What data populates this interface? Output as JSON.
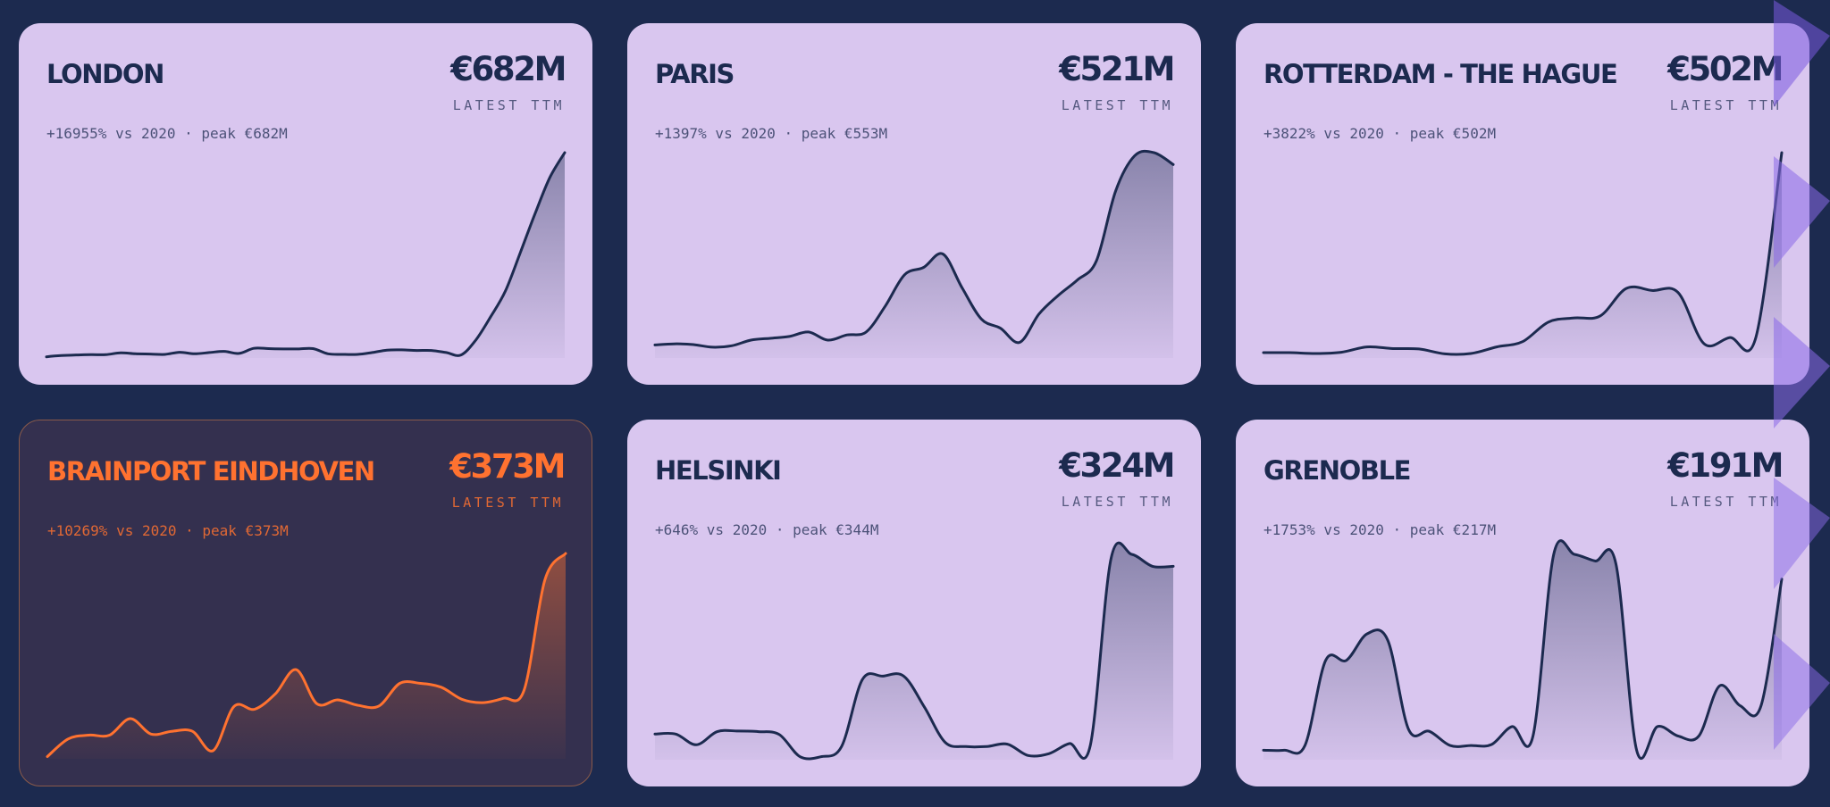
{
  "chart_data": [
    {
      "type": "area",
      "title": "LONDON",
      "headline": "€682M",
      "headline_label": "LATEST TTM",
      "subtitle": "+16955% vs 2020 · peak €682M",
      "highlight": false,
      "values": [
        4,
        8,
        10,
        11,
        11,
        17,
        14,
        13,
        12,
        19,
        14,
        18,
        22,
        15,
        32,
        31,
        30,
        30,
        31,
        14,
        12,
        12,
        18,
        26,
        27,
        25,
        25,
        18,
        10,
        60,
        137,
        223,
        350,
        480,
        600,
        682
      ],
      "ylim": [
        0,
        682
      ]
    },
    {
      "type": "area",
      "title": "PARIS",
      "headline": "€521M",
      "headline_label": "LATEST TTM",
      "subtitle": "+1397% vs 2020 · peak €553M",
      "highlight": false,
      "values": [
        35,
        38,
        36,
        29,
        33,
        48,
        53,
        58,
        70,
        48,
        62,
        70,
        140,
        224,
        244,
        280,
        189,
        105,
        80,
        42,
        118,
        168,
        210,
        262,
        450,
        545,
        553,
        521
      ],
      "ylim": [
        0,
        553
      ]
    },
    {
      "type": "area",
      "title": "ROTTERDAM - THE HAGUE",
      "headline": "€502M",
      "headline_label": "LATEST TTM",
      "subtitle": "+3822% vs 2020 · peak €502M",
      "highlight": false,
      "values": [
        13,
        13,
        11,
        14,
        27,
        23,
        22,
        10,
        11,
        27,
        40,
        88,
        98,
        103,
        170,
        165,
        160,
        35,
        50,
        50,
        502
      ],
      "ylim": [
        0,
        502
      ]
    },
    {
      "type": "area",
      "title": "BRAINPORT EINDHOVEN",
      "headline": "€373M",
      "headline_label": "LATEST TTM",
      "subtitle": "+10269% vs 2020 · peak €373M",
      "highlight": true,
      "values": [
        4,
        36,
        43,
        43,
        73,
        45,
        50,
        50,
        15,
        95,
        90,
        118,
        162,
        100,
        107,
        97,
        96,
        137,
        137,
        130,
        108,
        102,
        110,
        125,
        325,
        373
      ],
      "ylim": [
        0,
        373
      ]
    },
    {
      "type": "area",
      "title": "HELSINKI",
      "headline": "€324M",
      "headline_label": "LATEST TTM",
      "subtitle": "+646% vs 2020 · peak €344M",
      "highlight": false,
      "values": [
        43,
        43,
        25,
        47,
        48,
        47,
        42,
        5,
        5,
        22,
        134,
        140,
        140,
        88,
        29,
        22,
        22,
        26,
        7,
        10,
        27,
        24,
        337,
        344,
        324,
        324
      ],
      "ylim": [
        0,
        344
      ]
    },
    {
      "type": "area",
      "title": "GRENOBLE",
      "headline": "€191M",
      "headline_label": "LATEST TTM",
      "subtitle": "+1753% vs 2020 · peak €217M",
      "highlight": false,
      "values": [
        10,
        10,
        15,
        105,
        105,
        133,
        126,
        32,
        30,
        15,
        15,
        16,
        35,
        25,
        217,
        217,
        210,
        207,
        10,
        35,
        25,
        25,
        78,
        57,
        57,
        191
      ],
      "ylim": [
        0,
        217
      ]
    }
  ],
  "colors": {
    "page_background": "#1c2a4f",
    "card_background": "#d9c6ef",
    "ink": "#1c2a4f",
    "highlight_background": "#34304f",
    "highlight_accent": "#ff7230",
    "decoration": "#a98ae8"
  }
}
